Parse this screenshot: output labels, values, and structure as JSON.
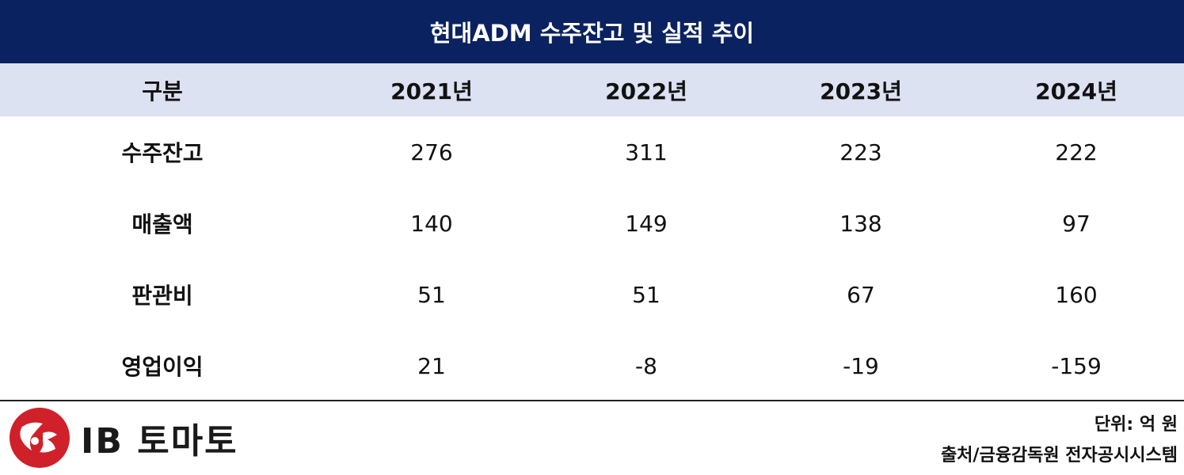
{
  "title": "현대ADM 수주잔고 및 실적 추이",
  "chart_data": {
    "type": "table",
    "title": "현대ADM 수주잔고 및 실적 추이",
    "columns": [
      "구분",
      "2021년",
      "2022년",
      "2023년",
      "2024년"
    ],
    "rows": [
      {
        "label": "수주잔고",
        "values": [
          "276",
          "311",
          "223",
          "222"
        ]
      },
      {
        "label": "매출액",
        "values": [
          "140",
          "149",
          "138",
          "97"
        ]
      },
      {
        "label": "판관비",
        "values": [
          "51",
          "51",
          "67",
          "160"
        ]
      },
      {
        "label": "영업이익",
        "values": [
          "21",
          "-8",
          "-19",
          "-159"
        ]
      }
    ],
    "unit_note": "단위: 억 원",
    "source_note": "출처/금융감독원 전자공시시스템"
  },
  "branding": {
    "logo_text": "IB 토마토",
    "logo_color": "#d0202a"
  },
  "colors": {
    "title_bg": "#0b2260",
    "header_bg": "#dde2f2"
  }
}
